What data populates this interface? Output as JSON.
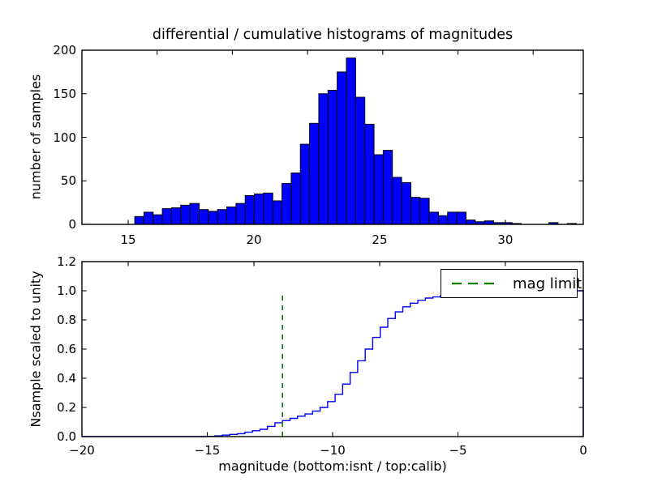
{
  "figure": {
    "title": "differential / cumulative histograms of magnitudes",
    "background": "#ffffff"
  },
  "colors": {
    "hist_fill": "#0000ff",
    "hist_edge": "#000000",
    "cumulative_line": "#0000ff",
    "mag_limit_line": "#008000",
    "axis": "#000000",
    "text": "#000000"
  },
  "legend": {
    "label": "mag limit",
    "line_color": "#008000",
    "line_style": "dashed",
    "position": "upper right"
  },
  "chart_data": [
    {
      "type": "bar",
      "subplot": "top",
      "title": "differential / cumulative histograms of magnitudes",
      "ylabel": "number of samples",
      "xlabel": "",
      "xlim": [
        13.16,
        33.1
      ],
      "ylim": [
        0,
        200
      ],
      "grid": false,
      "xticks": [
        {
          "v": 15,
          "label": "15"
        },
        {
          "v": 20,
          "label": "20"
        },
        {
          "v": 25,
          "label": "25"
        },
        {
          "v": 30,
          "label": "30"
        }
      ],
      "yticks": [
        {
          "v": 0,
          "label": "0"
        },
        {
          "v": 50,
          "label": "50"
        },
        {
          "v": 100,
          "label": "100"
        },
        {
          "v": 150,
          "label": "150"
        },
        {
          "v": 200,
          "label": "200"
        }
      ],
      "top_spine_ticks_isnt_scale": [
        -17,
        -14,
        -11,
        -8,
        -5,
        -2
      ],
      "bins": {
        "first_edge": 15.26,
        "width": 0.366
      },
      "values": [
        9,
        14,
        11,
        18,
        19,
        22,
        24,
        17,
        15,
        17,
        20,
        24,
        33,
        35,
        36,
        27,
        47,
        59,
        92,
        116,
        150,
        154,
        175,
        191,
        146,
        115,
        80,
        85,
        54,
        48,
        31,
        30,
        14,
        10,
        14,
        14,
        5,
        3,
        4,
        2,
        2,
        1,
        0,
        0,
        0,
        2,
        0,
        1
      ]
    },
    {
      "type": "line",
      "subplot": "bottom",
      "style": "step-cumulative",
      "ylabel": "Nsample scaled to unity",
      "xlabel": "magnitude (bottom:isnt / top:calib)",
      "xlim": [
        -20,
        0
      ],
      "ylim": [
        0,
        1.2
      ],
      "grid": false,
      "xticks": [
        {
          "v": -20,
          "label": "−20"
        },
        {
          "v": -15,
          "label": "−15"
        },
        {
          "v": -10,
          "label": "−10"
        },
        {
          "v": -5,
          "label": "−5"
        },
        {
          "v": 0,
          "label": "0"
        }
      ],
      "yticks": [
        {
          "v": 0.0,
          "label": "0.0"
        },
        {
          "v": 0.2,
          "label": "0.2"
        },
        {
          "v": 0.4,
          "label": "0.4"
        },
        {
          "v": 0.6,
          "label": "0.6"
        },
        {
          "v": 0.8,
          "label": "0.8"
        },
        {
          "v": 1.0,
          "label": "1.0"
        },
        {
          "v": 1.2,
          "label": "1.2"
        }
      ],
      "top_spine_ticks_calib_scale": [
        15,
        20,
        25,
        30
      ],
      "step_edges": {
        "start": -15.0,
        "step": 0.3,
        "count": 51
      },
      "cumulative": [
        0,
        0.002,
        0.005,
        0.01,
        0.015,
        0.02,
        0.03,
        0.04,
        0.05,
        0.07,
        0.095,
        0.11,
        0.125,
        0.14,
        0.155,
        0.175,
        0.2,
        0.24,
        0.29,
        0.36,
        0.44,
        0.52,
        0.6,
        0.68,
        0.75,
        0.81,
        0.855,
        0.89,
        0.915,
        0.935,
        0.95,
        0.958,
        0.965,
        0.971,
        0.976,
        0.98,
        0.984,
        0.987,
        0.989,
        0.991,
        0.993,
        0.994,
        0.995,
        0.996,
        0.997,
        0.998,
        0.9985,
        0.999,
        0.9993,
        0.9996,
        1.0
      ],
      "mag_limit": {
        "x": -12,
        "ymax": 0.97,
        "label": "mag limit"
      }
    }
  ]
}
